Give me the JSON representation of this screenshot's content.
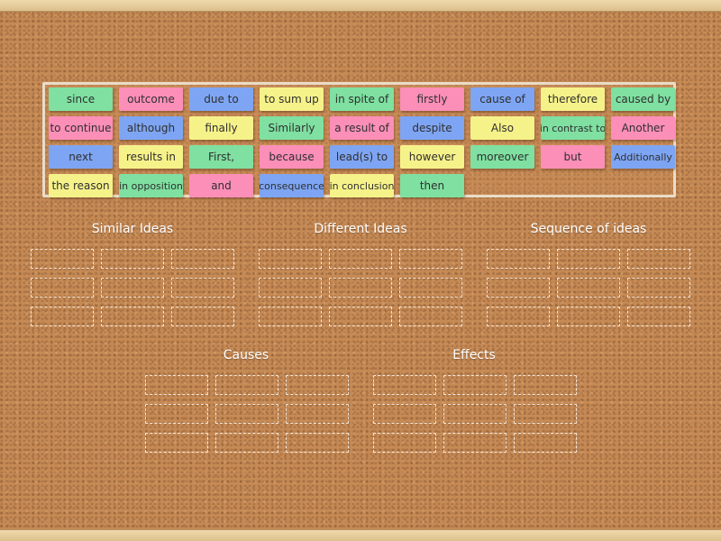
{
  "tiles": [
    {
      "text": "since",
      "color": "green"
    },
    {
      "text": "outcome",
      "color": "pink"
    },
    {
      "text": "due to",
      "color": "blue"
    },
    {
      "text": "to sum up",
      "color": "yellow"
    },
    {
      "text": "in spite of",
      "color": "green"
    },
    {
      "text": "firstly",
      "color": "pink"
    },
    {
      "text": "cause of",
      "color": "blue"
    },
    {
      "text": "therefore",
      "color": "yellow"
    },
    {
      "text": "caused by",
      "color": "green"
    },
    {
      "text": "to continue",
      "color": "pink"
    },
    {
      "text": "although",
      "color": "blue"
    },
    {
      "text": "finally",
      "color": "yellow"
    },
    {
      "text": "Similarly",
      "color": "green"
    },
    {
      "text": "a result of",
      "color": "pink"
    },
    {
      "text": "despite",
      "color": "blue"
    },
    {
      "text": "Also",
      "color": "yellow"
    },
    {
      "text": "in contrast to",
      "color": "green"
    },
    {
      "text": "Another",
      "color": "pink"
    },
    {
      "text": "next",
      "color": "blue"
    },
    {
      "text": "results in",
      "color": "yellow"
    },
    {
      "text": "First,",
      "color": "green"
    },
    {
      "text": "because",
      "color": "pink"
    },
    {
      "text": "lead(s) to",
      "color": "blue"
    },
    {
      "text": "however",
      "color": "yellow"
    },
    {
      "text": "moreover",
      "color": "green"
    },
    {
      "text": "but",
      "color": "pink"
    },
    {
      "text": "Additionally",
      "color": "blue"
    },
    {
      "text": "the reason",
      "color": "yellow"
    },
    {
      "text": "in opposition",
      "color": "green"
    },
    {
      "text": "and",
      "color": "pink"
    },
    {
      "text": "consequence",
      "color": "blue"
    },
    {
      "text": "in conclusion",
      "color": "yellow"
    },
    {
      "text": "then",
      "color": "green"
    }
  ],
  "groups": [
    {
      "title": "Similar Ideas"
    },
    {
      "title": "Different Ideas"
    },
    {
      "title": "Sequence of ideas"
    },
    {
      "title": "Causes"
    },
    {
      "title": "Effects"
    }
  ],
  "colors": {
    "green": "#7fe0a1",
    "pink": "#fb8fb7",
    "blue": "#7ea5f3",
    "yellow": "#f6f28a",
    "board": "#c68a55",
    "frame": "#eadcc8"
  }
}
